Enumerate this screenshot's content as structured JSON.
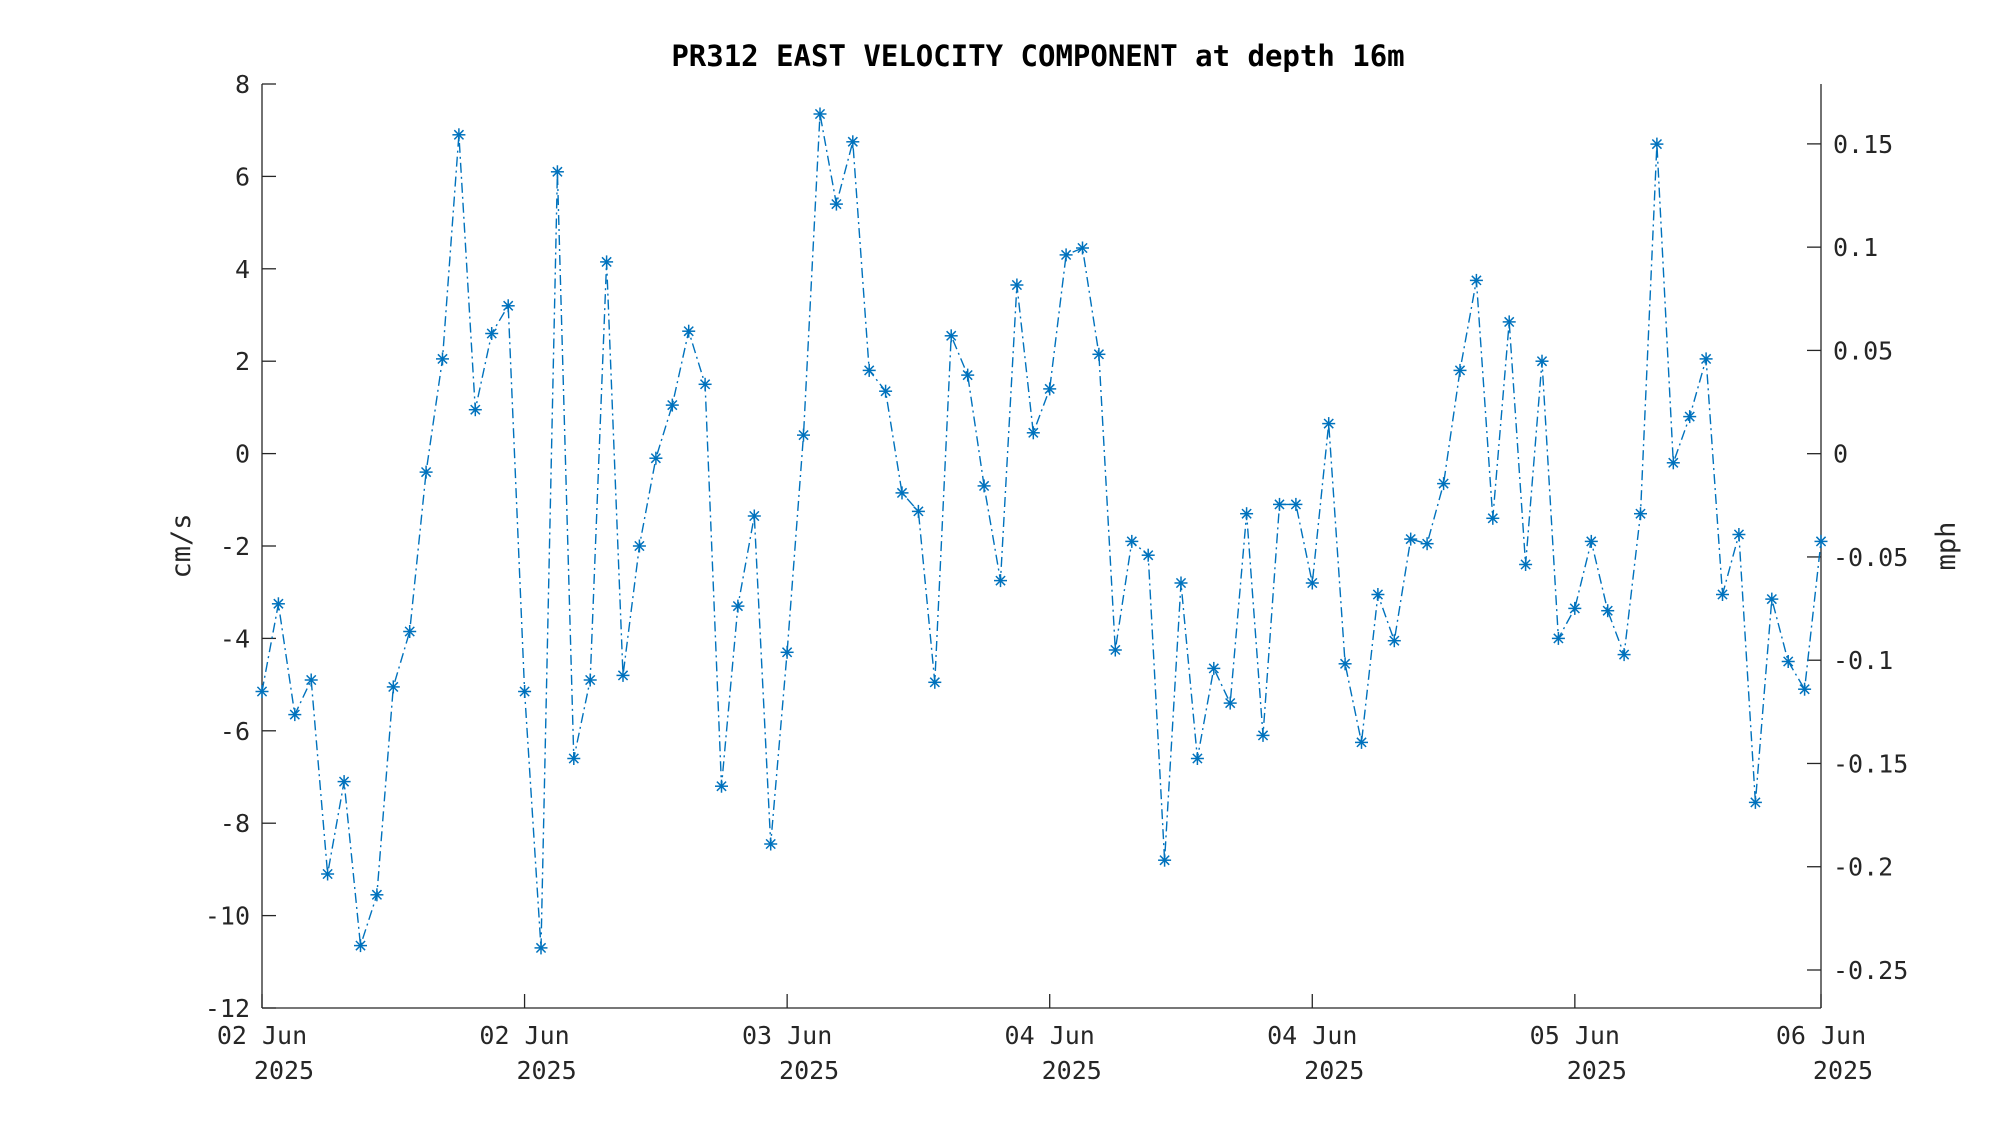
{
  "chart_data": {
    "type": "line",
    "title": "PR312 EAST VELOCITY COMPONENT at depth 16m",
    "ylabel": "cm/s",
    "y2label": "mph",
    "ylim": [
      -12,
      8
    ],
    "y2lim": [
      -0.2684,
      0.179
    ],
    "yticks": [
      -12,
      -10,
      -8,
      -6,
      -4,
      -2,
      0,
      2,
      4,
      6,
      8
    ],
    "y2ticks": [
      -0.25,
      -0.2,
      -0.15,
      -0.1,
      -0.05,
      0,
      0.05,
      0.1,
      0.15
    ],
    "y2tick_labels": [
      "-0.25",
      "-0.2",
      "-0.15",
      "-0.1",
      "-0.05",
      "0",
      "0.05",
      "0.1",
      "0.15"
    ],
    "xlim": [
      0,
      95
    ],
    "xticks": [
      {
        "hour": 0,
        "line1": "02 Jun",
        "line2": "2025"
      },
      {
        "hour": 16,
        "line1": "02 Jun",
        "line2": "2025"
      },
      {
        "hour": 32,
        "line1": "03 Jun",
        "line2": "2025"
      },
      {
        "hour": 48,
        "line1": "04 Jun",
        "line2": "2025"
      },
      {
        "hour": 64,
        "line1": "04 Jun",
        "line2": "2025"
      },
      {
        "hour": 80,
        "line1": "05 Jun",
        "line2": "2025"
      },
      {
        "hour": 96,
        "line1": "06 Jun",
        "line2": "2025"
      }
    ],
    "grid": false,
    "marker": "asterisk",
    "line_style": "dash-dot",
    "colors": {
      "series": "#0072BD",
      "axes": "#262626"
    },
    "series": [
      {
        "values": [
          -5.15,
          -3.25,
          -5.65,
          -4.9,
          -9.1,
          -7.1,
          -10.65,
          -9.55,
          -5.05,
          -3.85,
          -0.4,
          2.05,
          6.9,
          0.95,
          2.6,
          3.2,
          -5.15,
          -10.7,
          6.1,
          -6.6,
          -4.9,
          4.15,
          -4.8,
          -2.0,
          -0.1,
          1.05,
          2.65,
          1.5,
          -7.2,
          -3.3,
          -1.35,
          -8.45,
          -4.3,
          0.4,
          7.35,
          5.4,
          6.75,
          1.8,
          1.35,
          -0.85,
          -1.25,
          -4.95,
          2.55,
          1.7,
          -0.7,
          -2.75,
          3.65,
          0.45,
          1.4,
          4.3,
          4.45,
          2.15,
          -4.25,
          -1.9,
          -2.2,
          -8.8,
          -2.8,
          -6.6,
          -4.65,
          -5.4,
          -1.3,
          -6.1,
          -1.1,
          -1.1,
          -2.8,
          0.65,
          -4.55,
          -6.25,
          -3.05,
          -4.05,
          -1.85,
          -1.95,
          -0.65,
          1.8,
          3.75,
          -1.4,
          2.85,
          -2.4,
          2.0,
          -4.0,
          -3.35,
          -1.9,
          -3.4,
          -4.35,
          -1.3,
          6.7,
          -0.2,
          0.8,
          2.05,
          -3.05,
          -1.75,
          -7.55,
          -3.15,
          -4.5,
          -5.1,
          -1.9
        ]
      }
    ]
  }
}
